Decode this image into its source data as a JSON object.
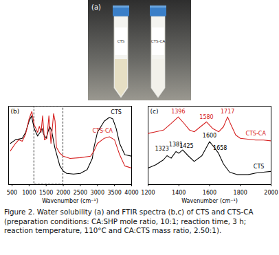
{
  "panel_a": {
    "title": "(a)",
    "tubes": [
      {
        "label": "CTS"
      },
      {
        "label": "CTS-CA"
      }
    ]
  },
  "chart_data": [
    {
      "type": "line",
      "title": "(b)",
      "xlabel": "Wavenumber (cm⁻¹)",
      "xlim": [
        400,
        4000
      ],
      "xticks": [
        500,
        1000,
        1500,
        2000,
        2500,
        3000,
        3500,
        4000
      ],
      "ylim": [
        0,
        105
      ],
      "tick_labels": "x",
      "highlight": {
        "x": [
          1150,
          2000
        ]
      },
      "series": [
        {
          "name": "CTS",
          "color": "#000000",
          "x": [
            450,
            600,
            800,
            900,
            1000,
            1070,
            1150,
            1250,
            1320,
            1380,
            1420,
            1500,
            1600,
            1660,
            1750,
            1900,
            2000,
            2100,
            2300,
            2500,
            2700,
            2850,
            2900,
            3000,
            3200,
            3350,
            3450,
            3550,
            3650,
            3800,
            4000
          ],
          "values": [
            55,
            60,
            62,
            70,
            85,
            92,
            75,
            65,
            70,
            75,
            68,
            62,
            78,
            72,
            50,
            25,
            18,
            15,
            14,
            15,
            20,
            35,
            50,
            70,
            85,
            90,
            88,
            75,
            55,
            40,
            38
          ]
        },
        {
          "name": "CTS-CA",
          "color": "#d62020",
          "x": [
            450,
            600,
            700,
            800,
            900,
            1000,
            1080,
            1150,
            1250,
            1300,
            1350,
            1396,
            1450,
            1520,
            1580,
            1640,
            1717,
            1760,
            1800,
            1900,
            2000,
            2200,
            2500,
            2800,
            2900,
            3000,
            3200,
            3350,
            3500,
            3650,
            3800,
            4000
          ],
          "values": [
            45,
            55,
            60,
            58,
            68,
            88,
            98,
            80,
            70,
            78,
            70,
            92,
            60,
            62,
            92,
            55,
            95,
            85,
            50,
            42,
            38,
            35,
            36,
            38,
            45,
            55,
            62,
            64,
            60,
            40,
            25,
            22
          ]
        }
      ],
      "annotations": [
        {
          "text": "CTS",
          "x": 3550,
          "y": 97,
          "series": "CTS"
        },
        {
          "text": "CTS-CA",
          "x": 3150,
          "y": 72,
          "series": "CTS-CA"
        }
      ]
    },
    {
      "type": "line",
      "title": "(c)",
      "xlabel": "Wavenumber (cm⁻¹)",
      "xlim": [
        1200,
        2000
      ],
      "xticks": [
        1200,
        1400,
        1600,
        1800,
        2000
      ],
      "ylim": [
        10,
        105
      ],
      "tick_labels": "x",
      "series": [
        {
          "name": "CTS-CA",
          "color": "#d62020",
          "x": [
            1200,
            1250,
            1300,
            1350,
            1396,
            1430,
            1470,
            1500,
            1540,
            1580,
            1620,
            1660,
            1690,
            1717,
            1740,
            1770,
            1800,
            1850,
            1900,
            1950,
            2000
          ],
          "values": [
            72,
            74,
            76,
            84,
            92,
            85,
            76,
            74,
            80,
            86,
            78,
            74,
            80,
            92,
            82,
            70,
            66,
            65,
            64,
            64,
            63
          ]
        },
        {
          "name": "CTS",
          "color": "#000000",
          "x": [
            1200,
            1250,
            1300,
            1323,
            1350,
            1381,
            1400,
            1425,
            1460,
            1500,
            1550,
            1600,
            1630,
            1658,
            1690,
            1730,
            1780,
            1850,
            1900,
            1950,
            2000
          ],
          "values": [
            30,
            34,
            40,
            45,
            42,
            50,
            48,
            52,
            45,
            38,
            45,
            62,
            55,
            48,
            35,
            25,
            22,
            22,
            24,
            25,
            26
          ]
        }
      ],
      "annotations": [
        {
          "text": "1396",
          "x": 1396,
          "y": 98,
          "series": "CTS-CA"
        },
        {
          "text": "1580",
          "x": 1580,
          "y": 92,
          "series": "CTS-CA"
        },
        {
          "text": "1717",
          "x": 1717,
          "y": 98,
          "series": "CTS-CA"
        },
        {
          "text": "CTS-CA",
          "x": 1900,
          "y": 72,
          "series": "CTS-CA"
        },
        {
          "text": "1323",
          "x": 1290,
          "y": 53,
          "series": "CTS"
        },
        {
          "text": "1381",
          "x": 1381,
          "y": 58,
          "series": "CTS"
        },
        {
          "text": "1425",
          "x": 1450,
          "y": 57,
          "series": "CTS"
        },
        {
          "text": "1600",
          "x": 1600,
          "y": 69,
          "series": "CTS"
        },
        {
          "text": "1658",
          "x": 1668,
          "y": 54,
          "series": "CTS"
        },
        {
          "text": "CTS",
          "x": 1920,
          "y": 32,
          "series": "CTS"
        }
      ]
    }
  ],
  "caption": "Figure 2. Water solubility (a) and FTIR spectra (b,c) of CTS and CTS-CA (preparation conditions: CA:SHP mole ratio, 10:1; reaction time, 3 h; reaction temperature, 110°C and CA:CTS mass ratio, 2.50:1)."
}
